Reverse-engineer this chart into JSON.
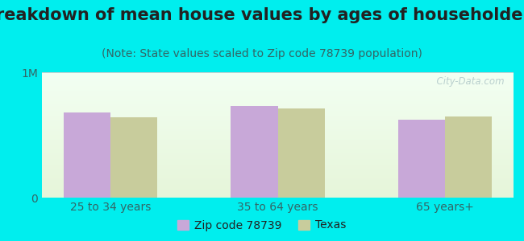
{
  "title": "Breakdown of mean house values by ages of householders",
  "subtitle": "(Note: State values scaled to Zip code 78739 population)",
  "categories": [
    "25 to 34 years",
    "35 to 64 years",
    "65 years+"
  ],
  "zip_values": [
    680000,
    730000,
    620000
  ],
  "texas_values": [
    640000,
    710000,
    650000
  ],
  "ylim": [
    0,
    1000000
  ],
  "yticks": [
    0,
    1000000
  ],
  "yticklabels": [
    "0",
    "1M"
  ],
  "bar_width": 0.28,
  "zip_color": "#c8a8d8",
  "texas_color": "#c8cc9c",
  "background_color": "#00eeee",
  "grid_color": "#ddcccc",
  "legend_zip_label": "Zip code 78739",
  "legend_texas_label": "Texas",
  "title_fontsize": 15,
  "subtitle_fontsize": 10,
  "tick_fontsize": 10,
  "legend_fontsize": 10,
  "watermark_text": "  City-Data.com",
  "title_color": "#222222",
  "subtitle_color": "#336666",
  "tick_color": "#336666"
}
